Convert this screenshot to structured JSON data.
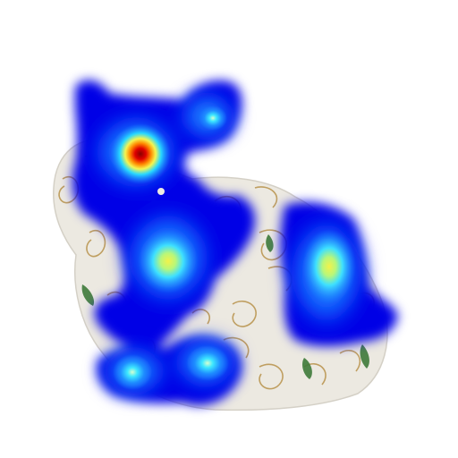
{
  "scene": {
    "subject": "porcelain-bunny",
    "overlay": "attention-heatmap",
    "colors": {
      "background": "#ffffff",
      "porcelain": "#ece9e1",
      "porcelain_shadow": "#d4d0c6",
      "gold_pattern": "#b8924a",
      "green_leaf": "#3e7a3a",
      "heat_low": "#0000e6",
      "heat_mid_low": "#1e7cff",
      "heat_mid": "#28d8ff",
      "heat_high": "#f5f550",
      "heat_peak": "#b00000"
    }
  }
}
